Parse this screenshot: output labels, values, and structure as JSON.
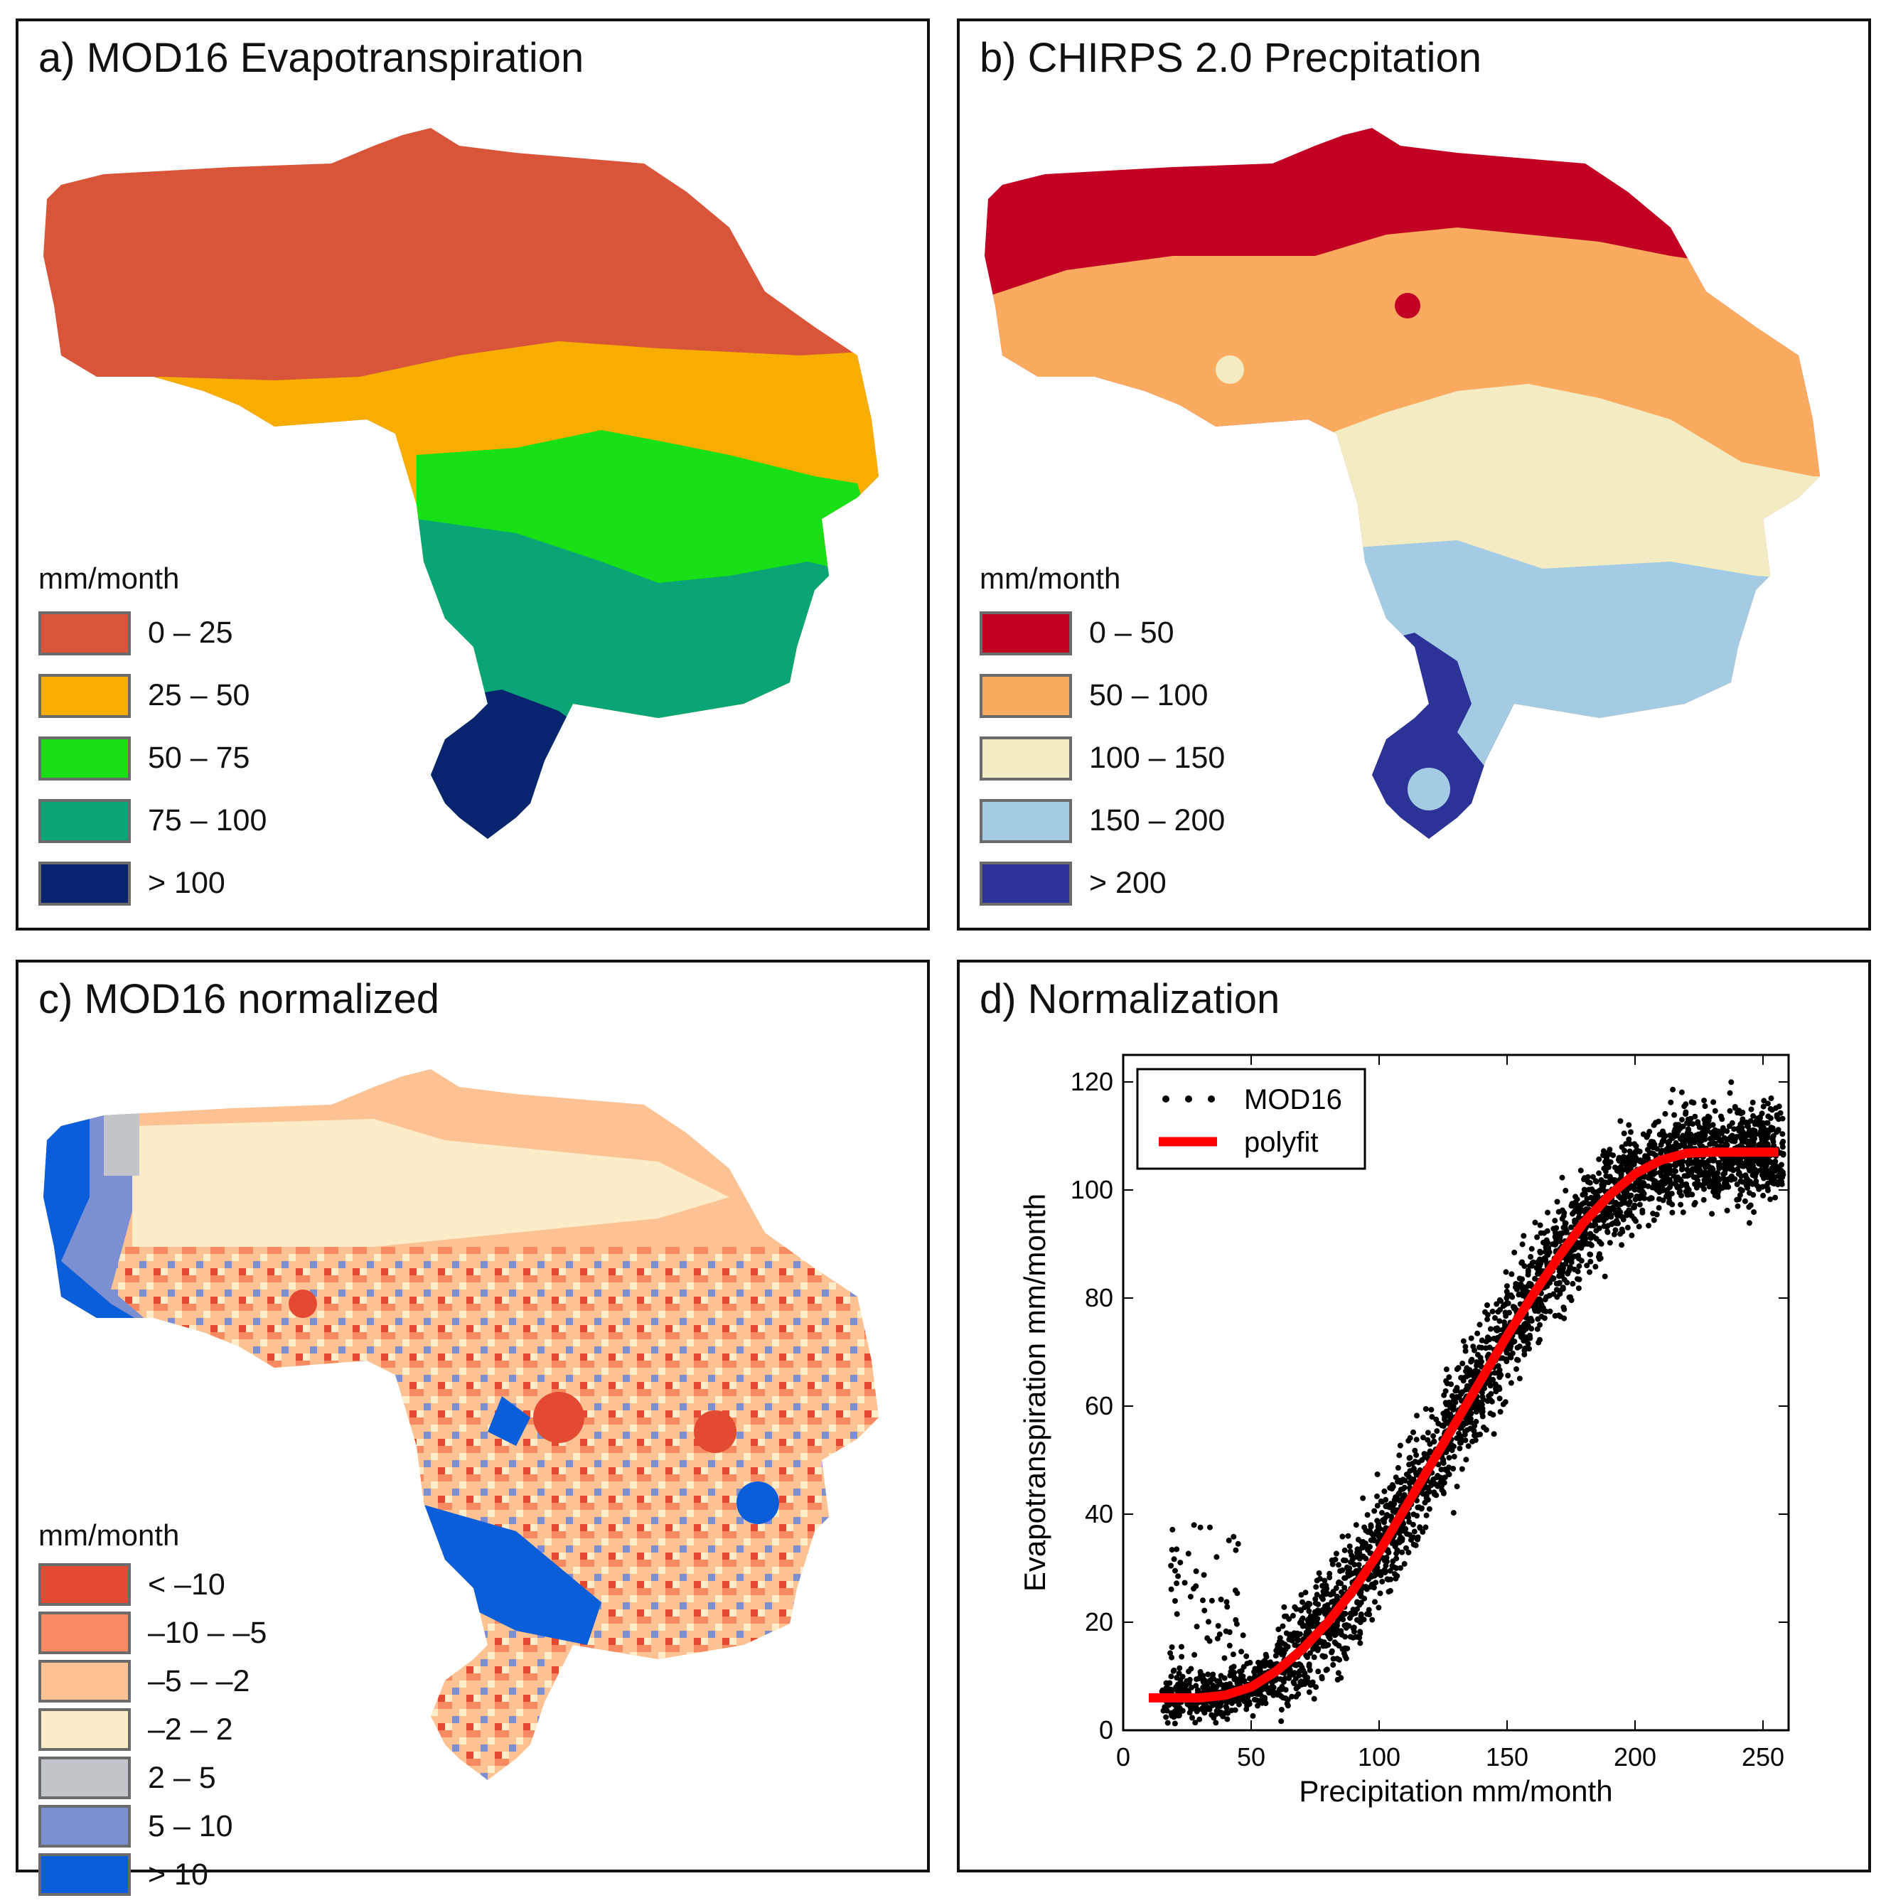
{
  "panels": {
    "a": {
      "title": "a) MOD16 Evapotranspiration",
      "legend_title": "mm/month",
      "legend": [
        {
          "label": "0 – 25",
          "color": "#d9553a"
        },
        {
          "label": "25 – 50",
          "color": "#f7ae00"
        },
        {
          "label": "50 – 75",
          "color": "#17e017"
        },
        {
          "label": "75 – 100",
          "color": "#09a577"
        },
        {
          "label": "> 100",
          "color": "#08246e"
        }
      ]
    },
    "b": {
      "title": "b) CHIRPS 2.0 Precpitation",
      "legend_title": "mm/month",
      "legend": [
        {
          "label": "0 – 50",
          "color": "#c10023"
        },
        {
          "label": "50 – 100",
          "color": "#fbab5f"
        },
        {
          "label": "100 – 150",
          "color": "#f3ebc1"
        },
        {
          "label": "150 – 200",
          "color": "#a3cbe3"
        },
        {
          "label": "> 200",
          "color": "#2b3396"
        }
      ]
    },
    "c": {
      "title": "c) MOD16 normalized",
      "legend_title": "mm/month",
      "legend": [
        {
          "label": "< –10",
          "color": "#e24b31"
        },
        {
          "label": "–10 – –5",
          "color": "#f78a61"
        },
        {
          "label": "–5 – –2",
          "color": "#fcc293"
        },
        {
          "label": "–2 – 2",
          "color": "#fcecc7"
        },
        {
          "label": "2 – 5",
          "color": "#c2c6cb"
        },
        {
          "label": "5 – 10",
          "color": "#7b8fd2"
        },
        {
          "label": "> 10",
          "color": "#0b5ed9"
        }
      ]
    },
    "d": {
      "title": "d) Normalization"
    }
  },
  "chart_data": {
    "type": "scatter",
    "title": "d) Normalization",
    "xlabel": "Precipitation mm/month",
    "ylabel": "Evapotranspiration mm/month",
    "xlim": [
      0,
      260
    ],
    "ylim": [
      0,
      125
    ],
    "xticks": [
      0,
      50,
      100,
      150,
      200,
      250
    ],
    "yticks": [
      0,
      20,
      40,
      60,
      80,
      100,
      120
    ],
    "legend": [
      {
        "name": "MOD16",
        "marker": "dot",
        "color": "#000000"
      },
      {
        "name": "polyfit",
        "marker": "line",
        "color": "#ff0000"
      }
    ],
    "series": [
      {
        "name": "polyfit",
        "x": [
          10,
          20,
          30,
          40,
          50,
          60,
          70,
          80,
          90,
          100,
          110,
          120,
          130,
          140,
          150,
          160,
          170,
          180,
          190,
          200,
          210,
          220,
          230,
          240,
          250,
          256
        ],
        "y": [
          6,
          6,
          6,
          6.5,
          8,
          11,
          15,
          20,
          26,
          33,
          41,
          49,
          57,
          65,
          73,
          80.5,
          87.5,
          94,
          99,
          103,
          105.5,
          106.8,
          107,
          107,
          107,
          107
        ]
      },
      {
        "name": "MOD16",
        "description_range": "dense scatter following polyfit curve",
        "x_range": [
          15,
          258
        ],
        "y_range": [
          1,
          124
        ]
      }
    ]
  }
}
